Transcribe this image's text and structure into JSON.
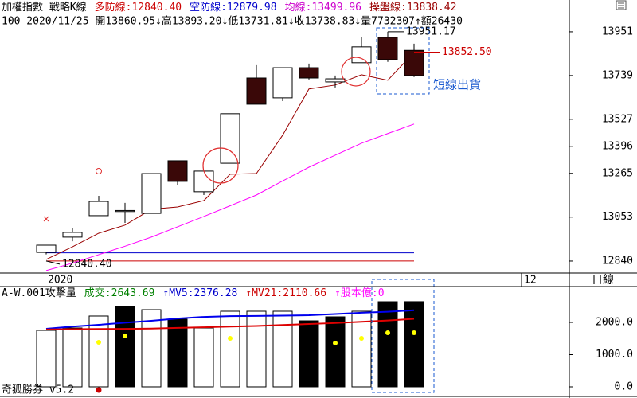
{
  "chart_data": [
    {
      "type": "candlestick",
      "header": [
        {
          "text": "加權指數 戰略K線",
          "color": "#000000"
        },
        {
          "text": "多防線:12840.40",
          "color": "#cc0000"
        },
        {
          "text": "空防線:12879.98",
          "color": "#0000cc"
        },
        {
          "text": "均線:13499.96",
          "color": "#cc00cc"
        },
        {
          "text": "操盤線:13838.42",
          "color": "#990000"
        }
      ],
      "subheader": "100 2020/11/25 開13860.95↓高13893.20↓低13731.81↓收13738.83↓量7732307↑額26430",
      "open": [
        12882,
        12956,
        13060,
        13080,
        13071,
        13326,
        13176,
        13314,
        13727,
        13631,
        13777,
        13708,
        13801,
        13924,
        13860.95
      ],
      "high": [
        12917,
        12998,
        13156,
        13122,
        13264,
        13326,
        13276,
        13554,
        13789,
        13777,
        13797,
        13739,
        13924,
        13951.17,
        13893.2
      ],
      "low": [
        12872,
        12936,
        13060,
        13025,
        13071,
        13210,
        13160,
        13314,
        13600,
        13615,
        13720,
        13681,
        13801,
        13805,
        13731.81
      ],
      "close": [
        12917,
        12979,
        13129,
        13085,
        13264,
        13226,
        13276,
        13554,
        13600,
        13777,
        13727,
        13723,
        13878,
        13816,
        13738.83
      ],
      "up_color": "#ffffff",
      "down_color": "#3a0808",
      "lines": [
        {
          "color": "#990000",
          "values": [
            12848,
            12909,
            12975,
            13014,
            13091,
            13102,
            13133,
            13261,
            13264,
            13450,
            13674,
            13693,
            13743,
            13716,
            13851
          ]
        },
        {
          "color": "#ff00ff",
          "values": [
            12794,
            12830,
            12871,
            12912,
            12956,
            13006,
            13056,
            13108,
            13160,
            13228,
            13295,
            13353,
            13411,
            13458,
            13504
          ]
        }
      ],
      "hlines": [
        {
          "value": 12879.98,
          "color": "#0000cc"
        },
        {
          "value": 12840.4,
          "color": "#cc0000"
        }
      ],
      "annotations": [
        {
          "value": 13951.17,
          "label": "13951.17",
          "color": "#000000"
        },
        {
          "value": 12840.4,
          "label": "12840.40",
          "color": "#000000"
        },
        {
          "value": 13852.5,
          "label": "13852.50",
          "color": "#cc0000"
        }
      ],
      "note": "短線出貨",
      "x_labels": [
        "2020",
        "12"
      ],
      "period": "日線",
      "ylim": [
        12782,
        14105
      ],
      "yticks": [
        13951,
        13739,
        13527,
        13396,
        13265,
        13053,
        12840
      ]
    },
    {
      "type": "volume",
      "header": [
        {
          "text": "A-W.001攻擊量",
          "color": "#000000"
        },
        {
          "text": "成交:2643.69",
          "color": "#008000"
        },
        {
          "text": "↑MV5:2376.28",
          "color": "#0000cc"
        },
        {
          "text": "↑MV21:2110.66",
          "color": "#cc0000"
        },
        {
          "text": "↑股本億:0",
          "color": "#ff00ff"
        }
      ],
      "values": [
        1753,
        1827,
        2198,
        2494,
        2395,
        2099,
        1827,
        2346,
        2346,
        2346,
        2049,
        2173,
        2346,
        2642,
        2643.69
      ],
      "colors": [
        "#ffffff",
        "#ffffff",
        "#ffffff",
        "#000000",
        "#ffffff",
        "#000000",
        "#ffffff",
        "#ffffff",
        "#ffffff",
        "#ffffff",
        "#000000",
        "#000000",
        "#ffffff",
        "#000000",
        "#000000"
      ],
      "lines": [
        {
          "color": "#0000ee",
          "values": [
            1802,
            1870,
            1925,
            1990,
            2050,
            2120,
            2170,
            2195,
            2200,
            2210,
            2222,
            2260,
            2300,
            2330,
            2376.28
          ]
        },
        {
          "color": "#dd0000",
          "values": [
            1780,
            1790,
            1795,
            1800,
            1810,
            1830,
            1850,
            1870,
            1890,
            1920,
            1950,
            1980,
            2020,
            2060,
            2110.66
          ]
        }
      ],
      "signals": [
        null,
        null,
        1383,
        1580,
        null,
        null,
        null,
        1506,
        null,
        null,
        null,
        1358,
        1506,
        1679,
        1679
      ],
      "signal_color": "#ffff00",
      "footer": "奇狐勝券 v5.2",
      "ylim": [
        -272,
        3062
      ],
      "yticks": [
        {
          "value": 0,
          "label": "0.0"
        },
        {
          "value": 1000,
          "label": "1000.0"
        },
        {
          "value": 2000,
          "label": "2000.0"
        }
      ]
    }
  ]
}
